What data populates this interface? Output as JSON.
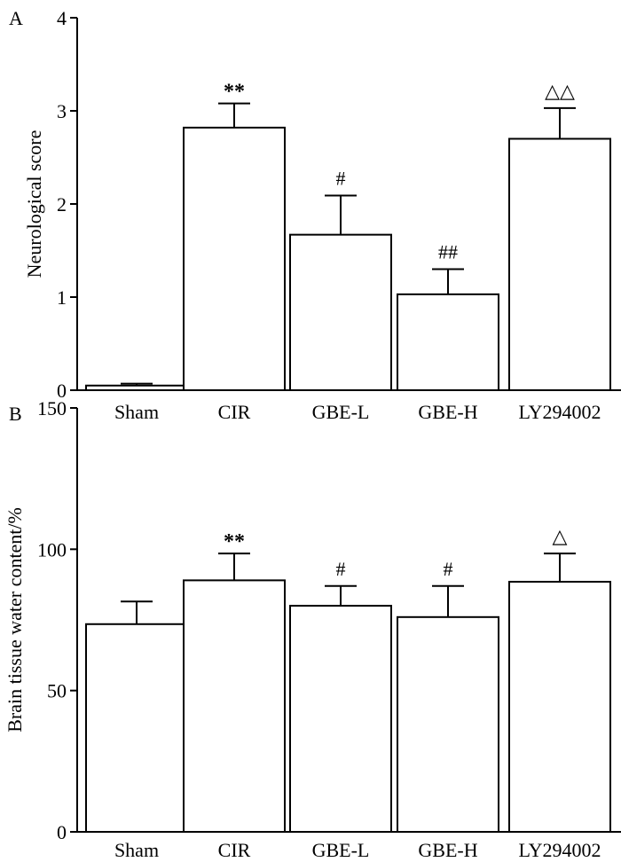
{
  "chart_data": [
    {
      "type": "bar",
      "panel_label": "A",
      "ylabel": "Neurological score",
      "xlabel": "",
      "ylim": [
        0,
        4
      ],
      "yticks": [
        "0",
        "1",
        "2",
        "3",
        "4"
      ],
      "categories": [
        "Sham",
        "CIR",
        "GBE-L",
        "GBE-H",
        "LY294002"
      ],
      "values": [
        0.05,
        2.82,
        1.67,
        1.03,
        2.7
      ],
      "errors": [
        0.02,
        0.26,
        0.42,
        0.27,
        0.33
      ],
      "annotations": [
        "",
        "**",
        "#",
        "##",
        "△△"
      ]
    },
    {
      "type": "bar",
      "panel_label": "B",
      "ylabel": "Brain tissue water content/%",
      "xlabel": "",
      "ylim": [
        0,
        150
      ],
      "yticks": [
        "0",
        "50",
        "100",
        "150"
      ],
      "categories": [
        "Sham",
        "CIR",
        "GBE-L",
        "GBE-H",
        "LY294002"
      ],
      "values": [
        73.5,
        89,
        80,
        76,
        88.5
      ],
      "errors": [
        8,
        9.5,
        7,
        11,
        10
      ],
      "annotations": [
        "",
        "**",
        "#",
        "#",
        "△"
      ]
    }
  ]
}
